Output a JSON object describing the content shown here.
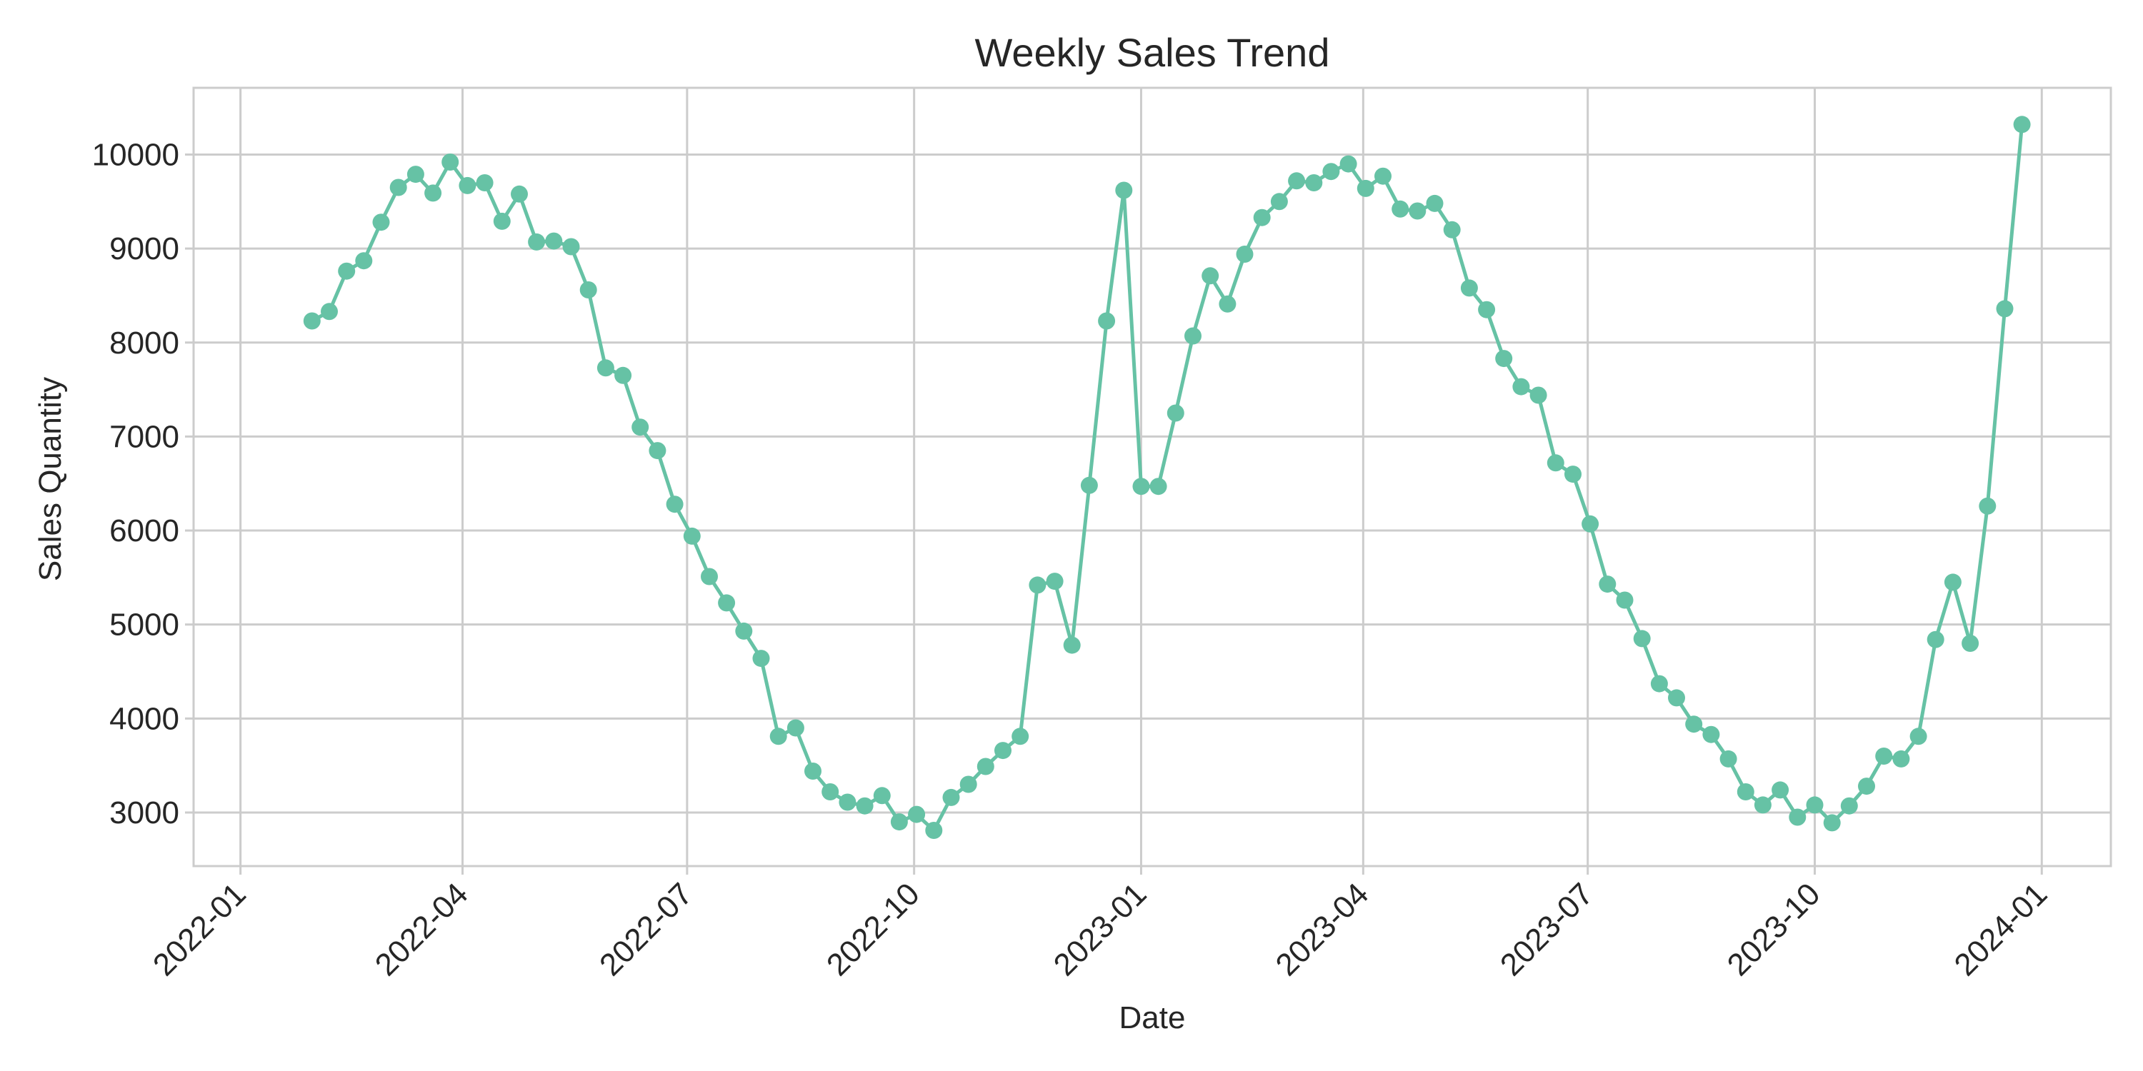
{
  "chart_data": {
    "type": "line",
    "title": "Weekly Sales Trend",
    "xlabel": "Date",
    "ylabel": "Sales Quantity",
    "x_axis": "date",
    "xlim": [
      "2021-12-13",
      "2024-01-29"
    ],
    "ylim": [
      2430,
      10710
    ],
    "grid": true,
    "markers": true,
    "legend": "none",
    "colors": {
      "series": "#66c2a5",
      "grid": "#cccccc",
      "spine": "#cccccc",
      "text": "#262626",
      "background": "#ffffff"
    },
    "x_ticks": [
      "2022-01",
      "2022-04",
      "2022-07",
      "2022-10",
      "2023-01",
      "2023-04",
      "2023-07",
      "2023-10",
      "2024-01"
    ],
    "x_tick_dates": [
      "2022-01-01",
      "2022-04-01",
      "2022-07-01",
      "2022-10-01",
      "2023-01-01",
      "2023-04-01",
      "2023-07-01",
      "2023-10-01",
      "2024-01-01"
    ],
    "y_ticks": [
      3000,
      4000,
      5000,
      6000,
      7000,
      8000,
      9000,
      10000
    ],
    "series": [
      {
        "x": [
          "2022-01-30",
          "2022-02-06",
          "2022-02-13",
          "2022-02-20",
          "2022-02-27",
          "2022-03-06",
          "2022-03-13",
          "2022-03-20",
          "2022-03-27",
          "2022-04-03",
          "2022-04-10",
          "2022-04-17",
          "2022-04-24",
          "2022-05-01",
          "2022-05-08",
          "2022-05-15",
          "2022-05-22",
          "2022-05-29",
          "2022-06-05",
          "2022-06-12",
          "2022-06-19",
          "2022-06-26",
          "2022-07-03",
          "2022-07-10",
          "2022-07-17",
          "2022-07-24",
          "2022-07-31",
          "2022-08-07",
          "2022-08-14",
          "2022-08-21",
          "2022-08-28",
          "2022-09-04",
          "2022-09-11",
          "2022-09-18",
          "2022-09-25",
          "2022-10-02",
          "2022-10-09",
          "2022-10-16",
          "2022-10-23",
          "2022-10-30",
          "2022-11-06",
          "2022-11-13",
          "2022-11-20",
          "2022-11-27",
          "2022-12-04",
          "2022-12-11",
          "2022-12-18",
          "2022-12-25",
          "2023-01-01",
          "2023-01-08",
          "2023-01-15",
          "2023-01-22",
          "2023-01-29",
          "2023-02-05",
          "2023-02-12",
          "2023-02-19",
          "2023-02-26",
          "2023-03-05",
          "2023-03-12",
          "2023-03-19",
          "2023-03-26",
          "2023-04-02",
          "2023-04-09",
          "2023-04-16",
          "2023-04-23",
          "2023-04-30",
          "2023-05-07",
          "2023-05-14",
          "2023-05-21",
          "2023-05-28",
          "2023-06-04",
          "2023-06-11",
          "2023-06-18",
          "2023-06-25",
          "2023-07-02",
          "2023-07-09",
          "2023-07-16",
          "2023-07-23",
          "2023-07-30",
          "2023-08-06",
          "2023-08-13",
          "2023-08-20",
          "2023-08-27",
          "2023-09-03",
          "2023-09-10",
          "2023-09-17",
          "2023-09-24",
          "2023-10-01",
          "2023-10-08",
          "2023-10-15",
          "2023-10-22",
          "2023-10-29",
          "2023-11-05",
          "2023-11-12",
          "2023-11-19",
          "2023-11-26",
          "2023-12-03",
          "2023-12-10",
          "2023-12-17",
          "2023-12-24"
        ],
        "y": [
          8230,
          8330,
          8760,
          8870,
          9280,
          9650,
          9790,
          9590,
          9920,
          9670,
          9700,
          9290,
          9580,
          9070,
          9080,
          9020,
          8560,
          7730,
          7650,
          7100,
          6850,
          6280,
          5940,
          5510,
          5230,
          4930,
          4640,
          3810,
          3900,
          3440,
          3220,
          3110,
          3070,
          3180,
          2900,
          2980,
          2810,
          3160,
          3300,
          3490,
          3660,
          3810,
          5420,
          5460,
          4780,
          6480,
          8230,
          9620,
          6470,
          6470,
          7250,
          8070,
          8710,
          8410,
          8940,
          9330,
          9500,
          9720,
          9700,
          9820,
          9900,
          9640,
          9770,
          9420,
          9400,
          9480,
          9200,
          8580,
          8350,
          7830,
          7530,
          7440,
          6720,
          6600,
          6070,
          5430,
          5260,
          4850,
          4370,
          4220,
          3940,
          3830,
          3570,
          3220,
          3080,
          3240,
          2950,
          3080,
          2890,
          3070,
          3280,
          3600,
          3570,
          3810,
          4840,
          5450,
          4800,
          6260,
          8360,
          10320
        ]
      }
    ]
  }
}
